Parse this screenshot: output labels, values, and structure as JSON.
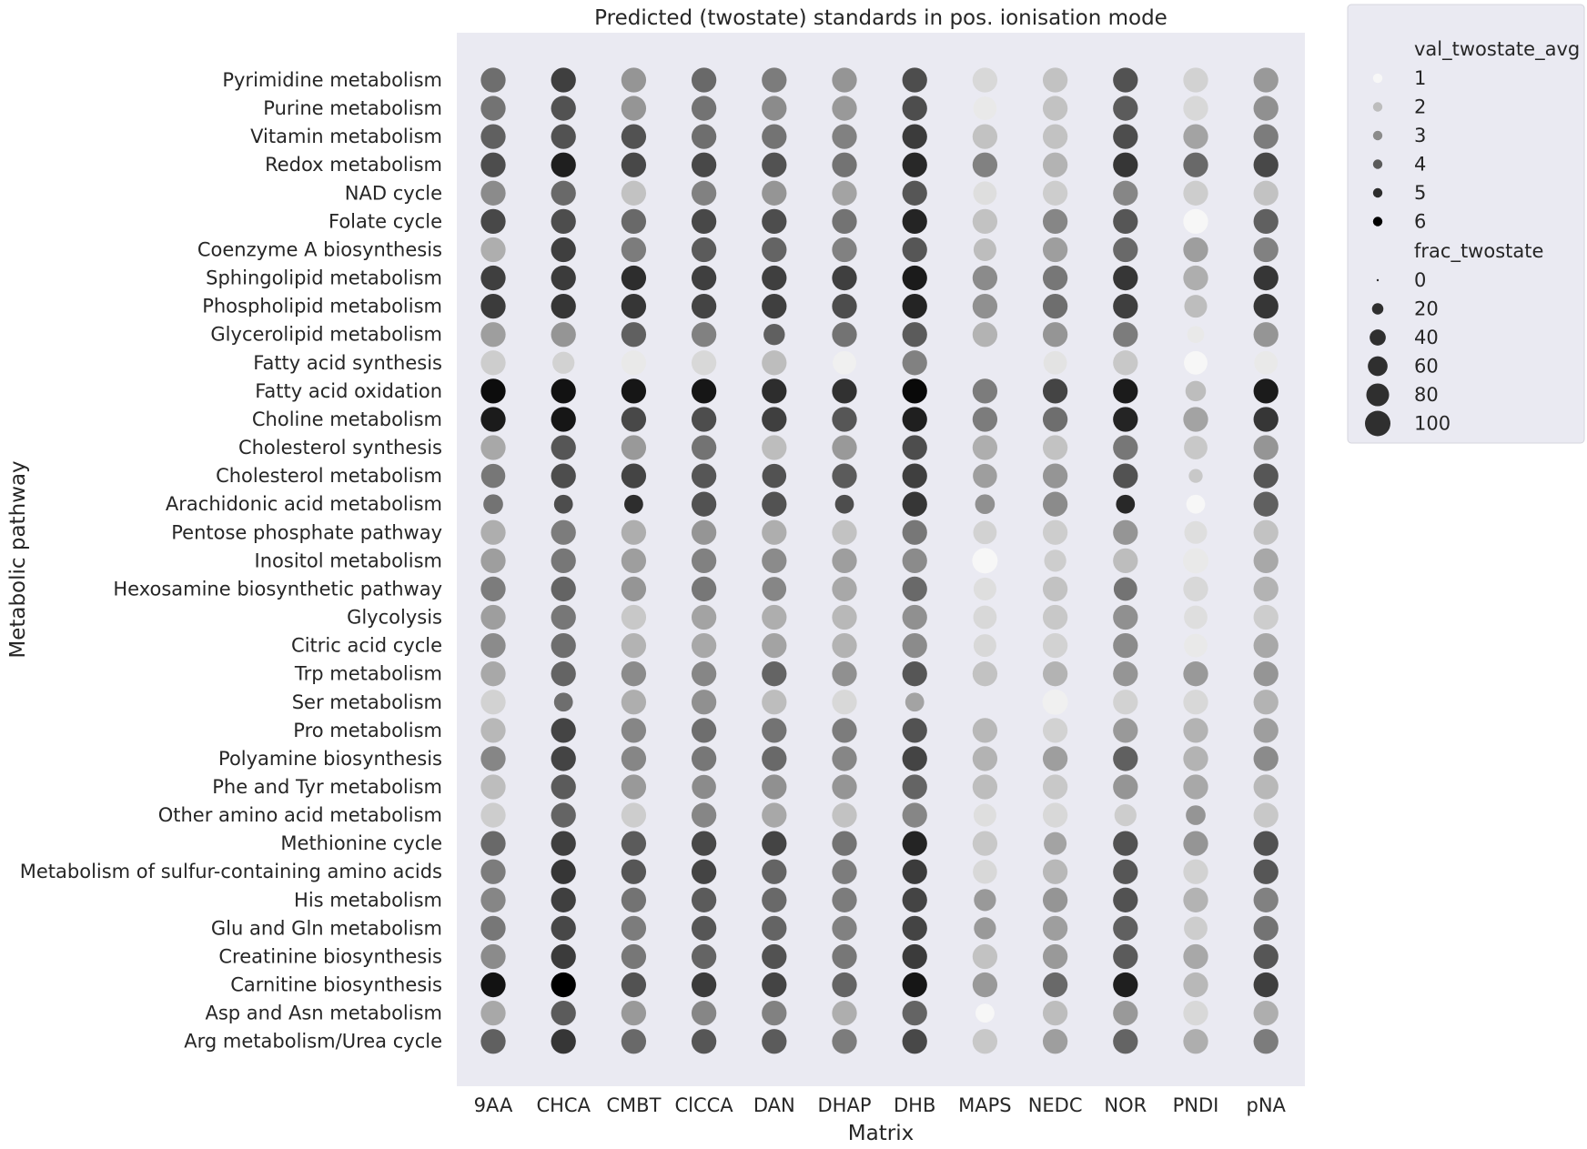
{
  "chart_data": {
    "type": "scatter",
    "title": "Predicted (twostate) standards in pos. ionisation mode",
    "xlabel": "Matrix",
    "ylabel": "Metabolic pathway",
    "x_categories": [
      "9AA",
      "CHCA",
      "CMBT",
      "ClCCA",
      "DAN",
      "DHAP",
      "DHB",
      "MAPS",
      "NEDC",
      "NOR",
      "PNDI",
      "pNA"
    ],
    "y_categories": [
      "Pyrimidine metabolism",
      "Purine metabolism",
      "Vitamin metabolism",
      "Redox metabolism",
      "NAD cycle",
      "Folate cycle",
      "Coenzyme A biosynthesis",
      "Sphingolipid metabolism",
      "Phospholipid metabolism",
      "Glycerolipid metabolism",
      "Fatty acid synthesis",
      "Fatty acid oxidation",
      "Choline metabolism",
      "Cholesterol synthesis",
      "Cholesterol metabolism",
      "Arachidonic acid metabolism",
      "Pentose phosphate pathway",
      "Inositol metabolism",
      "Hexosamine biosynthetic pathway",
      "Glycolysis",
      "Citric acid cycle",
      "Trp metabolism",
      "Ser metabolism",
      "Pro metabolism",
      "Polyamine biosynthesis",
      "Phe and Tyr metabolism",
      "Other amino acid metabolism",
      "Methionine cycle",
      "Metabolism of sulfur-containing amino acids",
      "His metabolism",
      "Glu and Gln metabolism",
      "Creatinine biosynthesis",
      "Carnitine biosynthesis",
      "Asp and Asn metabolism",
      "Arg metabolism/Urea cycle"
    ],
    "hue_variable": "val_twostate_avg",
    "size_variable": "frac_twostate",
    "colors": {
      "plot_background": "#eaeaf2",
      "hue_light": "#f7f7f7",
      "hue_dark": "#000000"
    },
    "grid": false,
    "legend_position": "outside right",
    "legend": {
      "hue_title": "val_twostate_avg",
      "hue_levels": [
        "1",
        "2",
        "3",
        "4",
        "5",
        "6"
      ],
      "hue_values": [
        1,
        2,
        3,
        4,
        5,
        6
      ],
      "size_title": "frac_twostate",
      "size_levels": [
        "0",
        "20",
        "40",
        "60",
        "80",
        "100"
      ],
      "size_values": [
        0,
        20,
        40,
        60,
        80,
        100
      ]
    },
    "val_twostate_avg": [
      [
        3.6,
        4.6,
        2.8,
        3.7,
        3.3,
        2.8,
        4.3,
        1.5,
        1.9,
        4.2,
        1.6,
        2.7
      ],
      [
        3.5,
        4.2,
        2.8,
        3.5,
        3.0,
        2.7,
        4.3,
        1.2,
        1.9,
        4.0,
        1.5,
        2.9
      ],
      [
        3.9,
        4.2,
        4.2,
        3.6,
        3.5,
        3.2,
        4.7,
        1.9,
        1.9,
        4.3,
        2.5,
        3.3
      ],
      [
        4.3,
        5.3,
        4.4,
        4.4,
        4.2,
        3.5,
        5.1,
        3.2,
        2.2,
        4.8,
        3.7,
        4.4
      ],
      [
        3.0,
        3.7,
        1.9,
        3.2,
        2.8,
        2.5,
        4.1,
        1.4,
        1.7,
        3.1,
        1.7,
        1.9
      ],
      [
        4.4,
        4.3,
        3.7,
        4.4,
        4.3,
        3.5,
        5.2,
        1.9,
        3.1,
        4.1,
        1.0,
        3.9
      ],
      [
        2.3,
        4.6,
        3.3,
        4.0,
        3.8,
        3.2,
        4.1,
        2.0,
        2.6,
        3.7,
        2.6,
        3.2
      ],
      [
        4.6,
        4.7,
        5.0,
        4.6,
        4.6,
        4.6,
        5.4,
        3.0,
        3.4,
        4.8,
        2.3,
        4.8
      ],
      [
        4.7,
        4.8,
        4.8,
        4.5,
        4.6,
        4.3,
        5.2,
        2.9,
        3.6,
        4.6,
        2.0,
        4.8
      ],
      [
        2.6,
        2.8,
        3.9,
        3.2,
        3.9,
        3.5,
        4.0,
        2.2,
        2.8,
        3.3,
        1.2,
        2.8
      ],
      [
        1.7,
        1.6,
        1.2,
        1.5,
        2.0,
        1.1,
        3.2,
        1.0,
        1.3,
        1.8,
        1.0,
        1.2
      ],
      [
        5.7,
        5.6,
        5.5,
        5.5,
        5.0,
        4.9,
        5.8,
        3.3,
        4.5,
        5.4,
        2.0,
        5.4
      ],
      [
        5.4,
        5.5,
        4.4,
        4.3,
        4.6,
        4.1,
        5.3,
        3.3,
        3.6,
        5.2,
        2.5,
        4.8
      ],
      [
        2.4,
        4.1,
        2.7,
        3.5,
        2.0,
        2.7,
        4.3,
        2.3,
        1.9,
        3.4,
        1.8,
        2.8
      ],
      [
        3.4,
        4.3,
        4.5,
        4.1,
        4.2,
        4.0,
        4.6,
        2.6,
        2.8,
        4.2,
        1.8,
        4.1
      ],
      [
        3.5,
        4.3,
        5.0,
        4.2,
        4.2,
        4.3,
        4.8,
        2.9,
        3.0,
        5.1,
        1.0,
        3.9
      ],
      [
        2.3,
        3.3,
        2.3,
        2.8,
        2.3,
        1.9,
        3.4,
        1.6,
        1.7,
        2.8,
        1.4,
        1.9
      ],
      [
        2.6,
        3.4,
        2.6,
        3.2,
        3.0,
        2.6,
        3.0,
        1.0,
        1.7,
        2.0,
        1.2,
        2.4
      ],
      [
        3.3,
        3.8,
        2.8,
        3.4,
        3.1,
        2.4,
        3.7,
        1.4,
        1.9,
        3.5,
        1.5,
        2.2
      ],
      [
        2.6,
        3.4,
        1.8,
        2.5,
        2.3,
        2.1,
        2.9,
        1.5,
        1.8,
        2.9,
        1.4,
        1.7
      ],
      [
        3.0,
        3.6,
        2.2,
        2.4,
        2.5,
        2.2,
        3.0,
        1.5,
        1.6,
        3.0,
        1.2,
        2.4
      ],
      [
        2.4,
        3.8,
        3.0,
        3.1,
        3.8,
        2.9,
        4.1,
        1.9,
        2.2,
        2.8,
        2.7,
        2.8
      ],
      [
        1.6,
        3.6,
        2.3,
        2.9,
        2.0,
        1.5,
        2.5,
        1.0,
        1.1,
        1.6,
        1.5,
        2.2
      ],
      [
        2.1,
        4.5,
        3.1,
        3.6,
        3.5,
        3.3,
        4.2,
        2.1,
        1.6,
        2.7,
        2.2,
        2.6
      ],
      [
        3.1,
        4.5,
        3.1,
        3.4,
        3.7,
        3.1,
        4.5,
        2.2,
        2.6,
        3.9,
        2.2,
        3.0
      ],
      [
        2.0,
        4.0,
        2.7,
        3.0,
        2.9,
        2.8,
        3.8,
        2.0,
        1.8,
        2.8,
        2.4,
        2.1
      ],
      [
        1.7,
        3.8,
        1.7,
        3.1,
        2.4,
        1.9,
        3.1,
        1.4,
        1.5,
        1.7,
        2.8,
        1.8
      ],
      [
        3.7,
        4.6,
        4.0,
        4.4,
        4.5,
        3.5,
        5.2,
        1.8,
        2.5,
        4.2,
        2.8,
        4.2
      ],
      [
        3.3,
        4.8,
        4.1,
        4.5,
        3.8,
        3.3,
        4.7,
        1.5,
        2.1,
        4.1,
        1.6,
        4.1
      ],
      [
        3.1,
        4.6,
        3.5,
        4.0,
        3.7,
        3.3,
        4.5,
        2.7,
        2.8,
        4.2,
        2.2,
        3.2
      ],
      [
        3.4,
        4.4,
        3.3,
        4.1,
        3.8,
        3.2,
        4.5,
        2.7,
        2.6,
        3.9,
        1.7,
        3.5
      ],
      [
        3.0,
        4.7,
        3.4,
        3.8,
        4.2,
        3.4,
        4.7,
        1.9,
        2.7,
        4.0,
        2.4,
        4.1
      ],
      [
        5.6,
        6.0,
        4.2,
        4.7,
        4.5,
        3.8,
        5.5,
        2.7,
        3.7,
        5.3,
        2.1,
        4.6
      ],
      [
        2.4,
        4.0,
        2.7,
        3.1,
        3.2,
        2.3,
        3.8,
        1.0,
        2.0,
        2.7,
        1.5,
        2.3
      ],
      [
        3.9,
        4.8,
        3.7,
        4.1,
        4.0,
        3.3,
        4.4,
        1.8,
        2.6,
        3.8,
        2.3,
        3.3
      ]
    ],
    "frac_twostate": [
      [
        95,
        95,
        95,
        95,
        95,
        95,
        95,
        95,
        95,
        95,
        95,
        95
      ],
      [
        95,
        95,
        95,
        95,
        95,
        95,
        95,
        85,
        95,
        95,
        95,
        95
      ],
      [
        95,
        95,
        95,
        95,
        95,
        95,
        95,
        95,
        95,
        95,
        95,
        95
      ],
      [
        95,
        95,
        95,
        95,
        95,
        95,
        95,
        95,
        95,
        95,
        95,
        95
      ],
      [
        95,
        95,
        95,
        95,
        95,
        95,
        95,
        85,
        95,
        95,
        95,
        95
      ],
      [
        95,
        95,
        95,
        95,
        95,
        95,
        95,
        95,
        95,
        95,
        95,
        95
      ],
      [
        95,
        95,
        95,
        95,
        95,
        95,
        95,
        80,
        95,
        95,
        95,
        95
      ],
      [
        95,
        95,
        95,
        95,
        95,
        95,
        95,
        95,
        95,
        95,
        95,
        95
      ],
      [
        95,
        95,
        95,
        95,
        95,
        95,
        95,
        95,
        95,
        95,
        80,
        95
      ],
      [
        95,
        95,
        95,
        95,
        70,
        95,
        95,
        95,
        95,
        95,
        45,
        95
      ],
      [
        95,
        75,
        95,
        95,
        95,
        85,
        95,
        0,
        85,
        95,
        85,
        85
      ],
      [
        95,
        95,
        95,
        95,
        95,
        95,
        95,
        95,
        95,
        95,
        65,
        95
      ],
      [
        95,
        95,
        95,
        95,
        95,
        95,
        95,
        95,
        95,
        95,
        95,
        95
      ],
      [
        95,
        95,
        95,
        95,
        95,
        95,
        95,
        95,
        95,
        95,
        85,
        95
      ],
      [
        90,
        95,
        95,
        95,
        90,
        95,
        95,
        90,
        95,
        95,
        30,
        95
      ],
      [
        60,
        55,
        55,
        95,
        95,
        55,
        95,
        60,
        95,
        55,
        55,
        95
      ],
      [
        95,
        95,
        95,
        95,
        95,
        95,
        95,
        85,
        95,
        95,
        80,
        95
      ],
      [
        95,
        95,
        95,
        95,
        95,
        95,
        95,
        100,
        75,
        95,
        100,
        95
      ],
      [
        95,
        95,
        95,
        95,
        90,
        95,
        95,
        80,
        95,
        85,
        95,
        95
      ],
      [
        95,
        95,
        95,
        95,
        95,
        95,
        95,
        85,
        95,
        95,
        85,
        95
      ],
      [
        95,
        95,
        95,
        95,
        95,
        95,
        95,
        80,
        95,
        95,
        85,
        95
      ],
      [
        95,
        95,
        95,
        95,
        95,
        95,
        95,
        95,
        95,
        95,
        95,
        95
      ],
      [
        95,
        55,
        95,
        95,
        95,
        95,
        55,
        0,
        100,
        95,
        95,
        95
      ],
      [
        95,
        95,
        95,
        95,
        95,
        95,
        95,
        95,
        95,
        95,
        95,
        95
      ],
      [
        95,
        95,
        95,
        95,
        95,
        95,
        95,
        95,
        95,
        95,
        95,
        95
      ],
      [
        95,
        95,
        95,
        90,
        95,
        95,
        95,
        95,
        95,
        95,
        95,
        95
      ],
      [
        95,
        95,
        95,
        95,
        95,
        95,
        95,
        80,
        95,
        75,
        60,
        95
      ],
      [
        95,
        95,
        95,
        95,
        95,
        95,
        95,
        95,
        80,
        95,
        95,
        95
      ],
      [
        95,
        95,
        95,
        95,
        95,
        95,
        95,
        90,
        95,
        95,
        95,
        95
      ],
      [
        95,
        95,
        95,
        95,
        95,
        95,
        95,
        75,
        95,
        95,
        95,
        95
      ],
      [
        95,
        95,
        95,
        95,
        95,
        95,
        95,
        75,
        95,
        95,
        85,
        95
      ],
      [
        95,
        95,
        95,
        95,
        95,
        95,
        95,
        95,
        95,
        95,
        95,
        95
      ],
      [
        95,
        95,
        95,
        95,
        95,
        95,
        95,
        95,
        95,
        95,
        95,
        95
      ],
      [
        95,
        95,
        95,
        95,
        95,
        95,
        95,
        55,
        95,
        95,
        95,
        95
      ],
      [
        95,
        95,
        95,
        95,
        95,
        95,
        95,
        95,
        95,
        95,
        95,
        95
      ]
    ]
  }
}
